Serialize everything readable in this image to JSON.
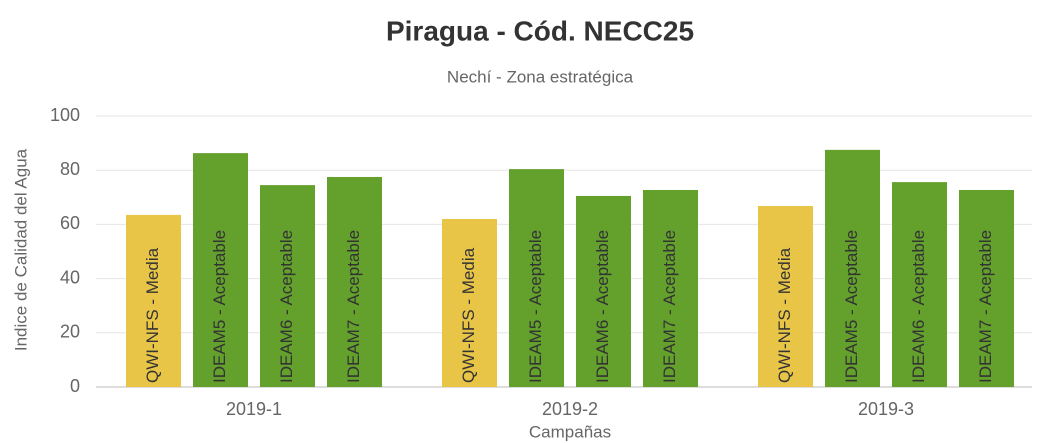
{
  "chart_data": {
    "type": "bar",
    "title": "Piragua - Cód. NECC25",
    "subtitle": "Nechí - Zona estratégica",
    "y_label": "Indice de Calidad del Agua",
    "x_label": "Campañas",
    "categories": [
      "2019-1",
      "2019-2",
      "2019-3"
    ],
    "series": [
      {
        "color": "#e8c547",
        "values": [
          63.5,
          62,
          66.8
        ],
        "value_labels": [
          "QWI-NFS - Media",
          "QWI-NFS - Media",
          "QWI-NFS - Media"
        ]
      },
      {
        "color": "#63a02c",
        "values": [
          86.3,
          80.4,
          87.5
        ],
        "value_labels": [
          "IDEAM5 - Aceptable",
          "IDEAM5 - Aceptable",
          "IDEAM5 - Aceptable"
        ]
      },
      {
        "color": "#63a02c",
        "values": [
          74.5,
          70.5,
          75.6
        ],
        "value_labels": [
          "IDEAM6 - Aceptable",
          "IDEAM6 - Aceptable",
          "IDEAM6 - Aceptable"
        ]
      },
      {
        "color": "#63a02c",
        "values": [
          77.5,
          72.7,
          72.7
        ],
        "value_labels": [
          "IDEAM7 - Aceptable",
          "IDEAM7 - Aceptable",
          "IDEAM7 - Aceptable"
        ]
      }
    ],
    "ylim": [
      0,
      100
    ],
    "yticks": [
      0,
      20,
      40,
      60,
      80,
      100
    ],
    "grid": true
  }
}
